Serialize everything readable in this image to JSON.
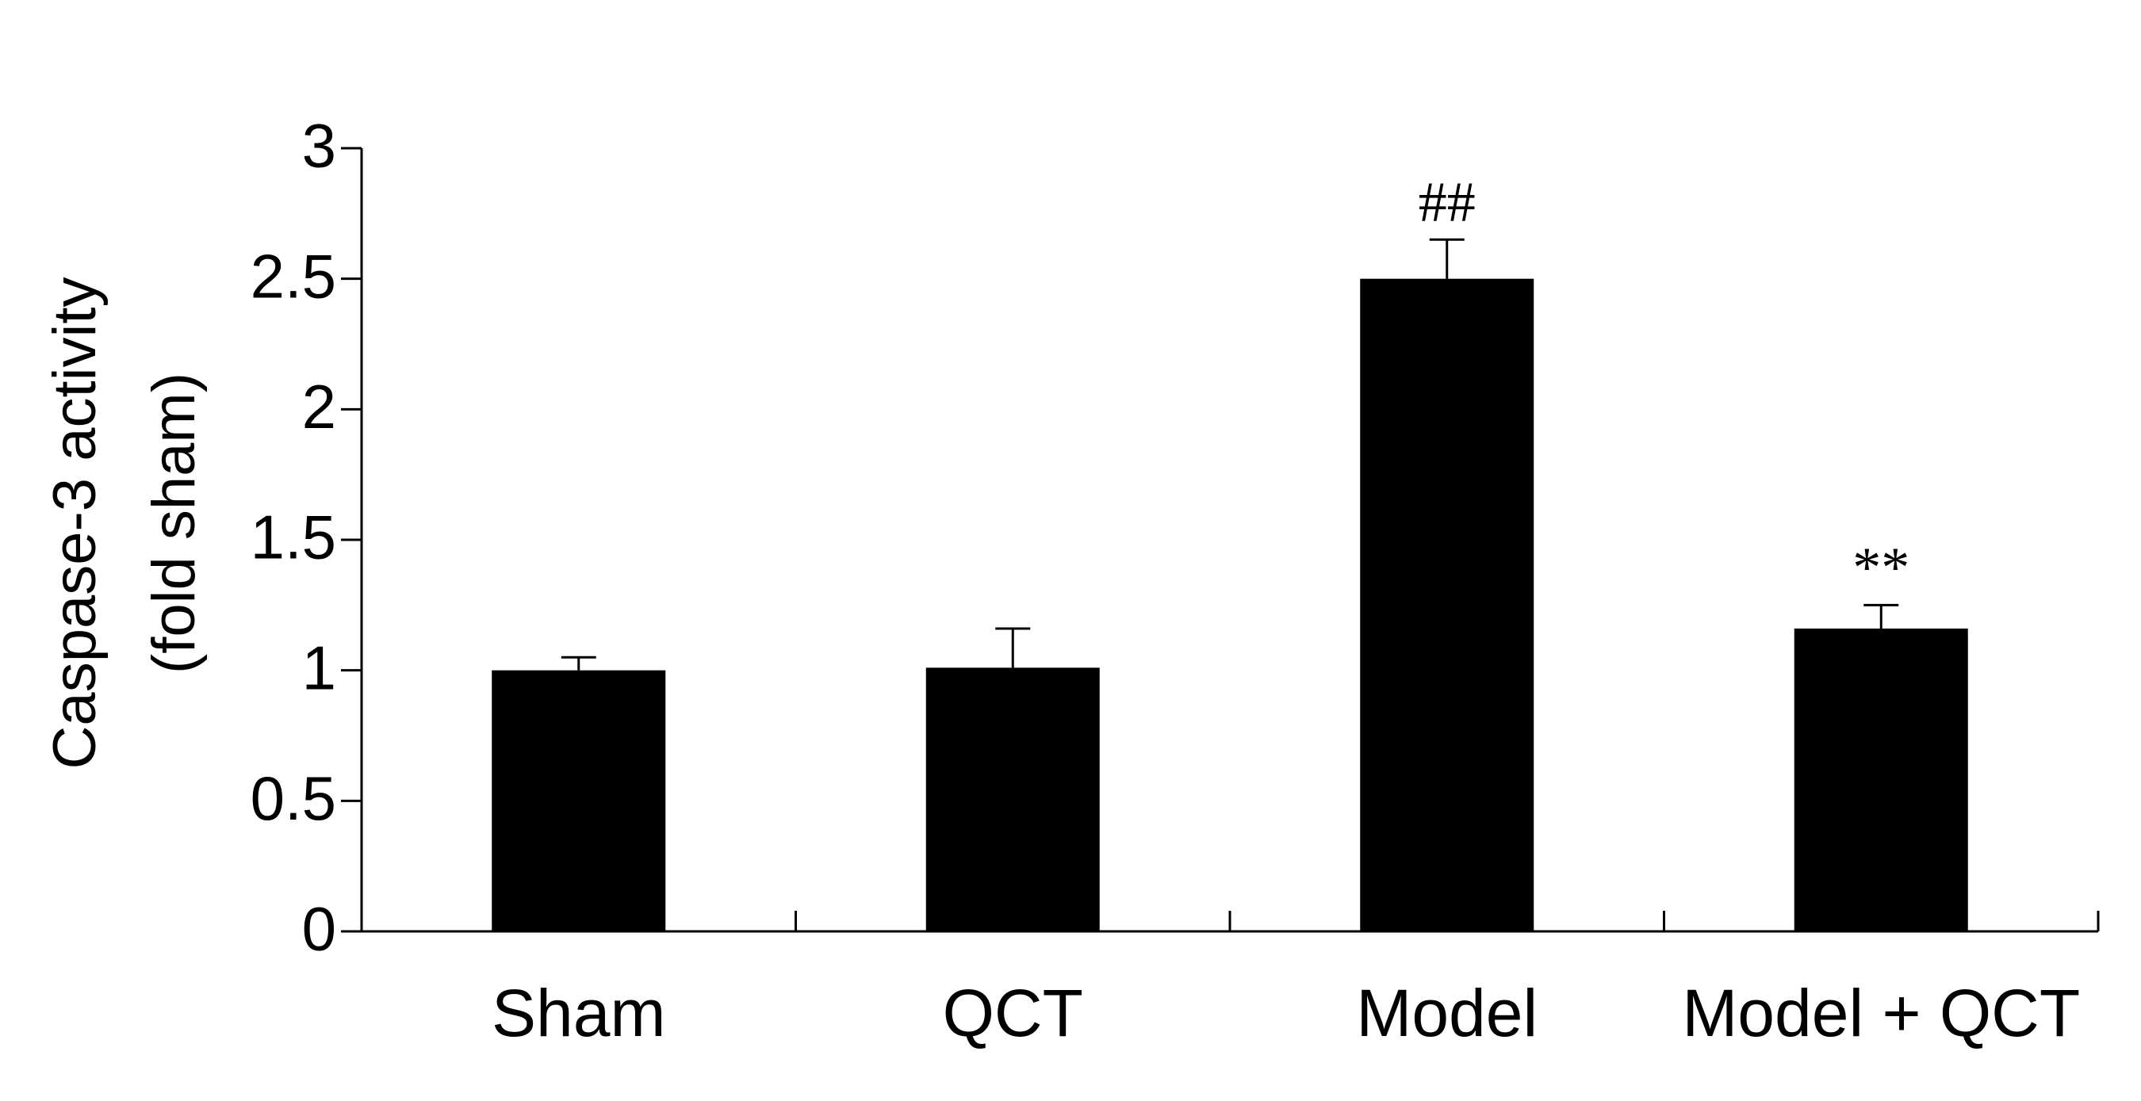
{
  "chart_data": {
    "type": "bar",
    "ylabel": [
      "Caspase-3 activity",
      "(fold sham)"
    ],
    "categories": [
      "Sham",
      "QCT",
      "Model",
      "Model + QCT"
    ],
    "values": [
      1.0,
      1.01,
      2.5,
      1.16
    ],
    "errors": [
      0.05,
      0.15,
      0.15,
      0.09
    ],
    "annotations": [
      {
        "category": 2,
        "text": "##"
      },
      {
        "category": 3,
        "text": "**"
      }
    ],
    "color": "#000000",
    "ylim": [
      0,
      3
    ],
    "yticks": [
      0,
      0.5,
      1,
      1.5,
      2,
      2.5,
      3
    ],
    "grid": false
  }
}
